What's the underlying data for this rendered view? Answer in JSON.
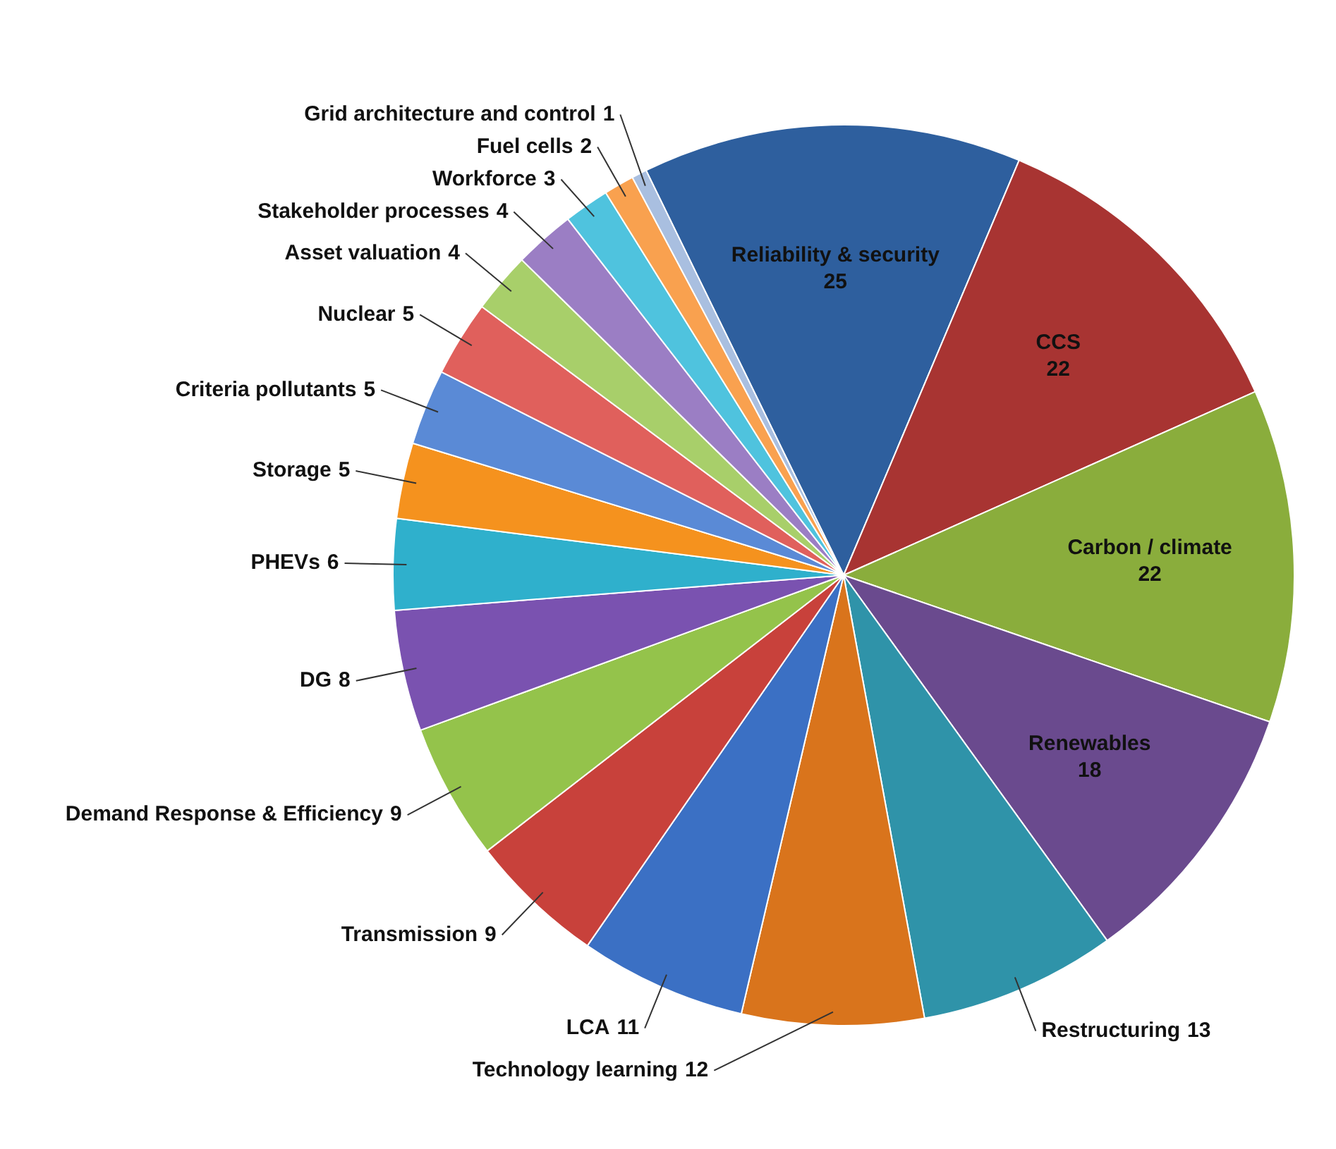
{
  "chart_data": {
    "type": "pie",
    "data_labels": true,
    "categories": [
      "Reliability & security",
      "CCS",
      "Carbon / climate",
      "Renewables",
      "Restructuring",
      "Technology learning",
      "LCA",
      "Transmission",
      "Demand Response & Efficiency",
      "DG",
      "PHEVs",
      "Storage",
      "Criteria pollutants",
      "Nuclear",
      "Asset valuation",
      "Stakeholder processes",
      "Workforce",
      "Fuel cells",
      "Grid architecture and control"
    ],
    "values": [
      25,
      22,
      22,
      18,
      13,
      12,
      11,
      9,
      9,
      8,
      6,
      5,
      5,
      5,
      4,
      4,
      3,
      2,
      1
    ],
    "colors": [
      "#2e5f9e",
      "#a83432",
      "#8aad3c",
      "#6a4a8e",
      "#2f93a9",
      "#d9741c",
      "#3b70c4",
      "#c8413b",
      "#94c34b",
      "#7a52b0",
      "#2fb0cc",
      "#f5921e",
      "#5a8ad6",
      "#e0605c",
      "#a8cf6a",
      "#9b7ec4",
      "#4fc3de",
      "#f9a14f",
      "#a9bfe0"
    ]
  }
}
